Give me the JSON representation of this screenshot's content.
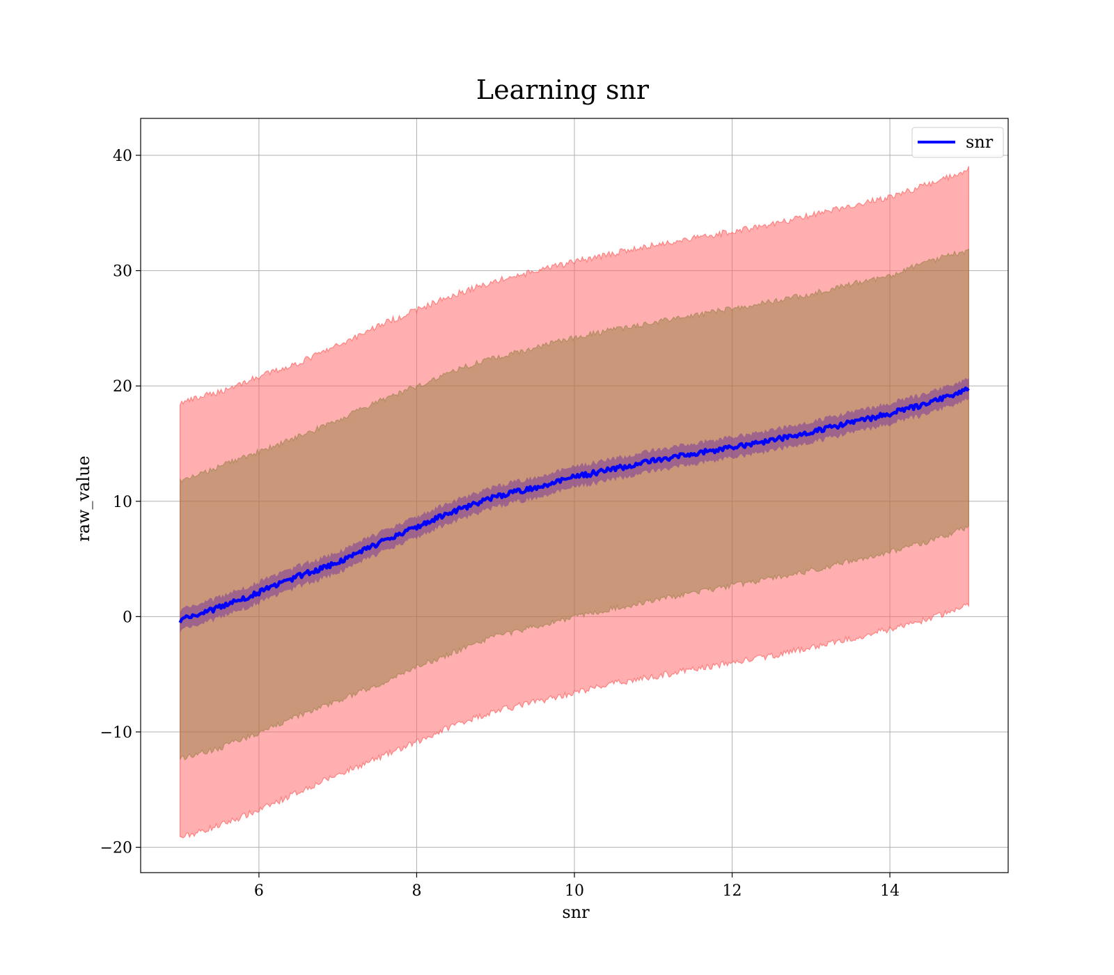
{
  "chart_data": {
    "type": "line",
    "title": "Learning snr",
    "xlabel": "snr",
    "ylabel": "raw_value",
    "xlim": [
      4.5,
      15.5
    ],
    "ylim": [
      -22.2,
      43.2
    ],
    "xticks": [
      6,
      8,
      10,
      12,
      14
    ],
    "yticks": [
      -20,
      -10,
      0,
      10,
      20,
      30,
      40
    ],
    "xtick_labels": [
      "6",
      "8",
      "10",
      "12",
      "14"
    ],
    "ytick_labels": [
      "−20",
      "−10",
      "0",
      "10",
      "20",
      "30",
      "40"
    ],
    "grid": true,
    "legend": {
      "position": "top-right",
      "entries": [
        "snr"
      ]
    },
    "colors": {
      "line": "#0000ff",
      "outer_band": "#ff6666",
      "outer_band_edge": "#ff4d4d",
      "inner_band": "#8b7a3a",
      "mean_band": "#7a3a9a",
      "grid": "#b0b0b0"
    },
    "series": [
      {
        "name": "snr",
        "x": [
          5.0,
          5.5,
          6.0,
          6.5,
          7.0,
          7.5,
          8.0,
          8.5,
          9.0,
          9.5,
          10.0,
          10.5,
          11.0,
          11.5,
          12.0,
          12.5,
          13.0,
          13.5,
          14.0,
          14.5,
          15.0
        ],
        "mean": [
          -0.3,
          0.8,
          2.1,
          3.5,
          4.7,
          6.3,
          7.8,
          9.2,
          10.4,
          11.2,
          12.1,
          12.8,
          13.5,
          14.1,
          14.7,
          15.3,
          16.0,
          16.8,
          17.6,
          18.5,
          19.8
        ],
        "inner_upper": [
          11.7,
          13.0,
          14.3,
          15.6,
          17.0,
          18.6,
          20.0,
          21.4,
          22.5,
          23.3,
          24.2,
          24.9,
          25.5,
          26.1,
          26.7,
          27.3,
          28.0,
          28.8,
          29.6,
          30.8,
          31.8
        ],
        "inner_lower": [
          -12.3,
          -11.4,
          -10.1,
          -8.6,
          -7.3,
          -5.9,
          -4.4,
          -3.0,
          -1.7,
          -0.9,
          0.0,
          0.7,
          1.4,
          2.0,
          2.7,
          3.3,
          4.0,
          4.8,
          5.6,
          6.5,
          7.8
        ],
        "outer_upper": [
          18.5,
          19.5,
          20.8,
          22.0,
          23.5,
          25.2,
          26.6,
          28.0,
          29.1,
          29.9,
          30.8,
          31.5,
          32.2,
          32.8,
          33.4,
          34.0,
          34.8,
          35.6,
          36.4,
          37.5,
          38.8
        ],
        "outer_lower": [
          -19.2,
          -18.1,
          -16.8,
          -15.2,
          -13.7,
          -12.3,
          -10.9,
          -9.3,
          -8.2,
          -7.4,
          -6.6,
          -5.8,
          -5.2,
          -4.6,
          -4.0,
          -3.4,
          -2.7,
          -1.9,
          -1.1,
          -0.2,
          1.0
        ]
      }
    ]
  }
}
